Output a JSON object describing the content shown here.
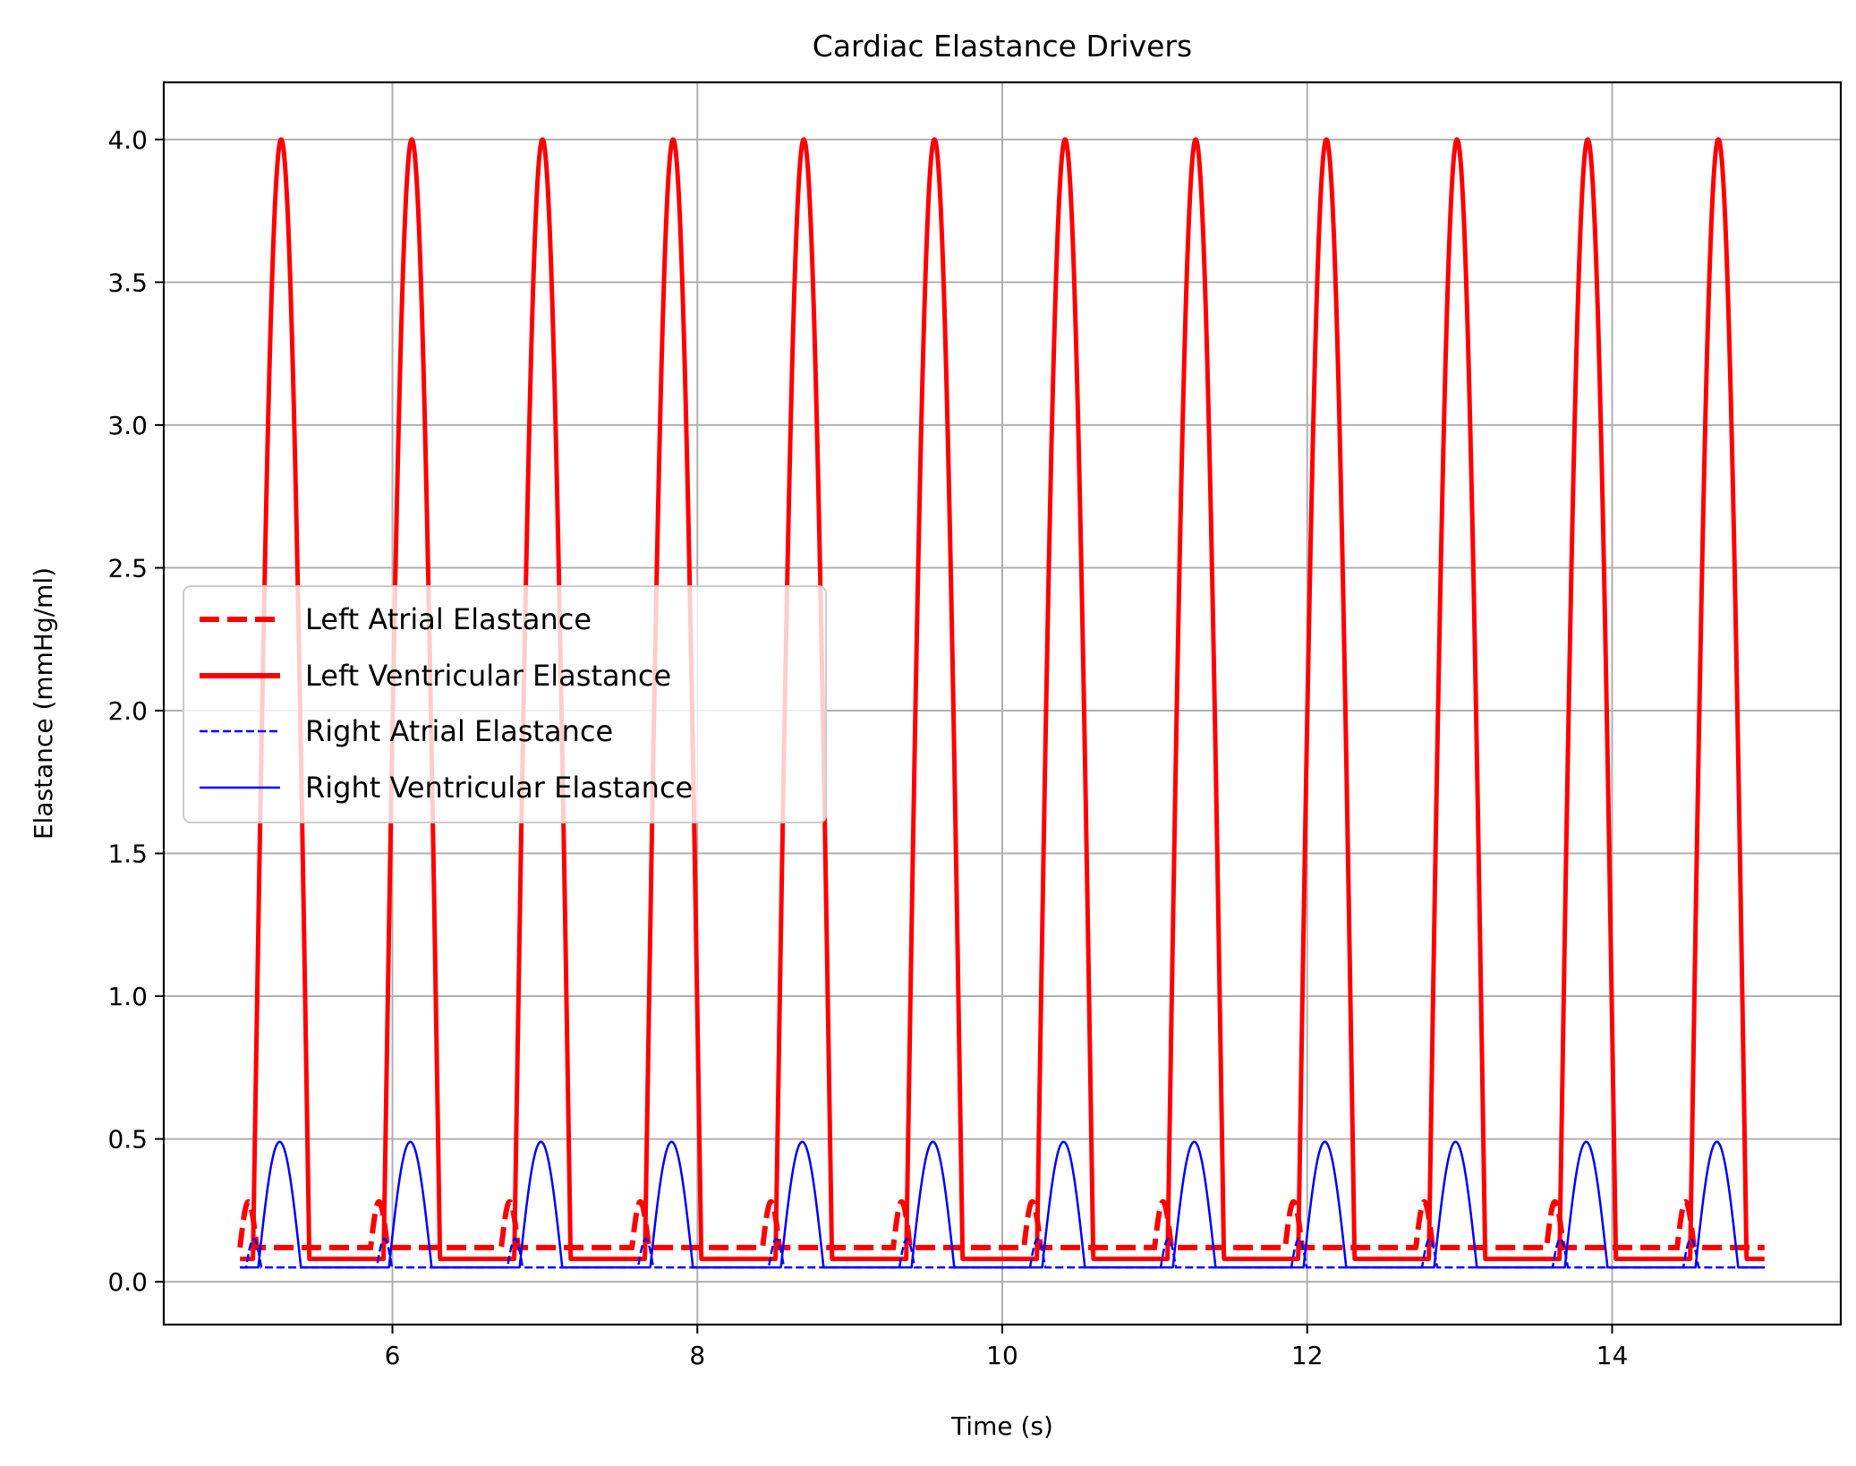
{
  "chart_data": {
    "type": "line",
    "title": "Cardiac Elastance Drivers",
    "xlabel": "Time (s)",
    "ylabel": "Elastance (mmHg/ml)",
    "xlim": [
      4.5,
      15.5
    ],
    "ylim": [
      -0.15,
      4.2
    ],
    "xticks": [
      6,
      8,
      10,
      12,
      14
    ],
    "yticks": [
      0.0,
      0.5,
      1.0,
      1.5,
      2.0,
      2.5,
      3.0,
      3.5,
      4.0
    ],
    "grid": true,
    "legend_position": "center-left",
    "time_range": [
      5,
      15
    ],
    "cycle_period_s": 0.857,
    "series": [
      {
        "name": "Left Atrial Elastance",
        "color": "#ff0000",
        "style": "dashed-thick",
        "baseline": 0.12,
        "peak": 0.28
      },
      {
        "name": "Left Ventricular Elastance",
        "color": "#ff0000",
        "style": "solid-thick",
        "baseline": 0.08,
        "peak": 4.0
      },
      {
        "name": "Right Atrial Elastance",
        "color": "#0000ff",
        "style": "dashed-thin",
        "baseline": 0.05,
        "peak": 0.15
      },
      {
        "name": "Right Ventricular Elastance",
        "color": "#0000ff",
        "style": "solid-thin",
        "baseline": 0.05,
        "peak": 0.49
      }
    ]
  }
}
